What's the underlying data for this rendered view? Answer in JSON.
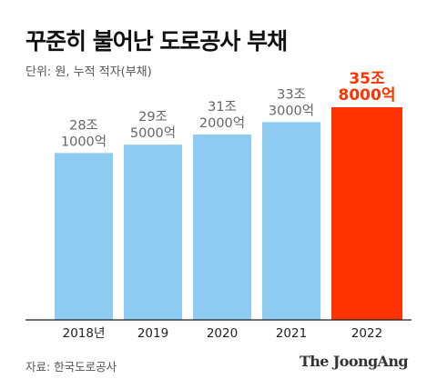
{
  "title": "꾸준히 불어난 도로공사 부채",
  "unit_note": "단위: 원, 누적 적자(부채)",
  "source": "자료: 한국도로공사",
  "brand": "The JoongAng",
  "colors": {
    "bar": "#8ecbf1",
    "highlight": "#ff3300",
    "label": "#666666",
    "axis": "#222222"
  },
  "chart_data": {
    "type": "bar",
    "categories": [
      "2018년",
      "2019",
      "2020",
      "2021",
      "2022"
    ],
    "values": [
      281000,
      295000,
      312000,
      333000,
      358000
    ],
    "value_labels": [
      [
        "28조",
        "1000억"
      ],
      [
        "29조",
        "5000억"
      ],
      [
        "31조",
        "2000억"
      ],
      [
        "33조",
        "3000억"
      ],
      [
        "35조",
        "8000억"
      ]
    ],
    "highlight_index": 4,
    "value_unit": "억 원",
    "ylim": [
      0,
      358000
    ],
    "grid": false,
    "title": "꾸준히 불어난 도로공사 부채",
    "xlabel": "",
    "ylabel": ""
  }
}
